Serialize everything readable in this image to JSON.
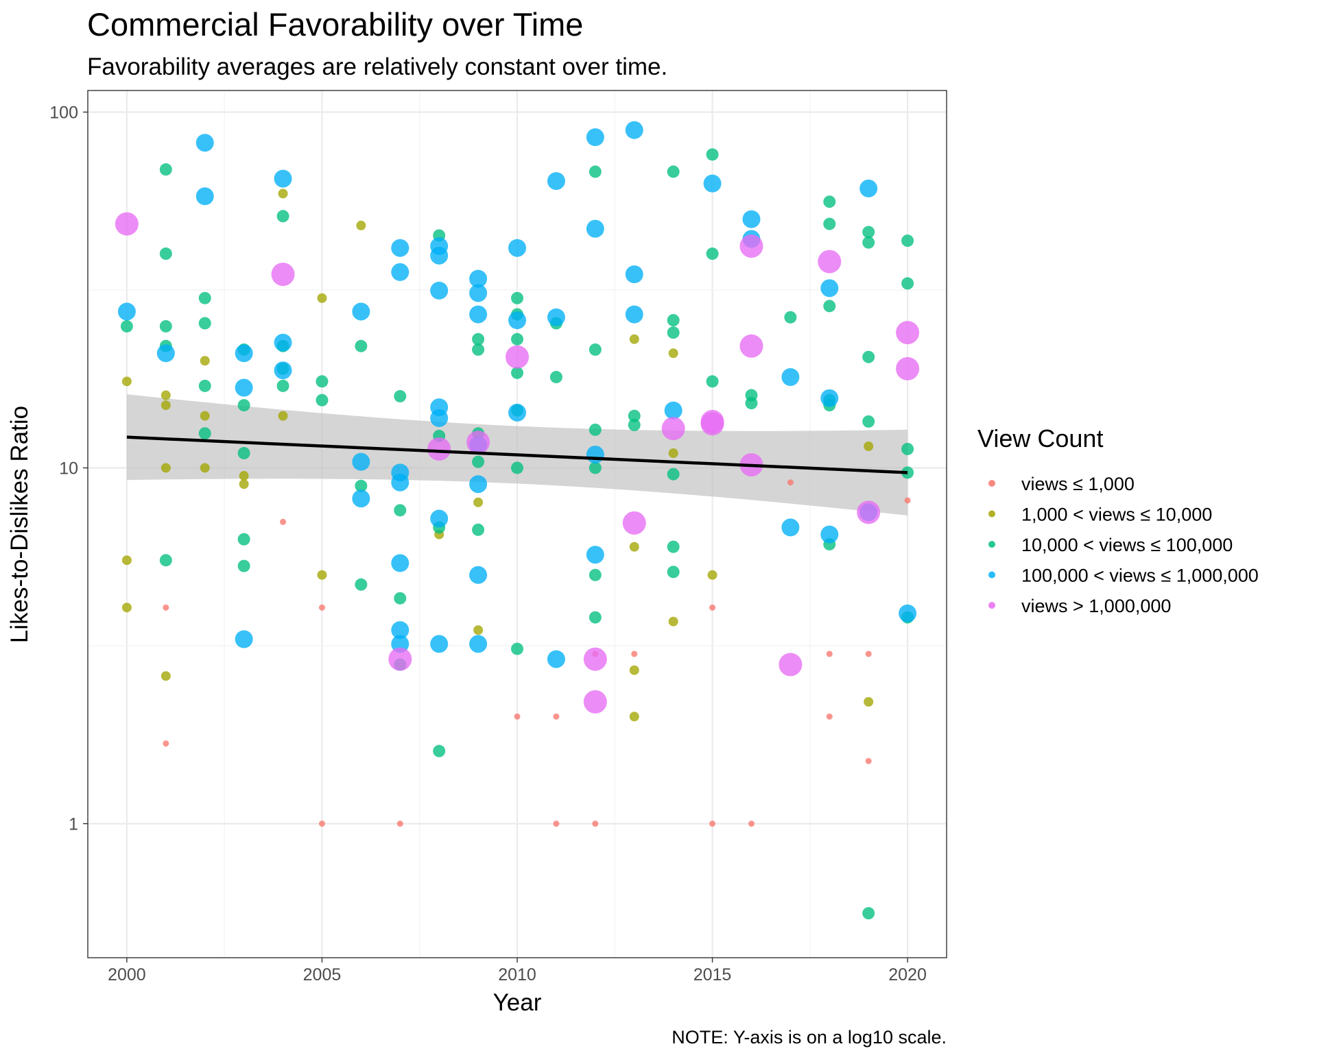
{
  "chart_data": {
    "type": "scatter",
    "title": "Commercial Favorability over Time",
    "subtitle": "Favorability averages are relatively constant over time.",
    "xlabel": "Year",
    "ylabel": "Likes-to-Dislikes Ratio",
    "caption": "NOTE: Y-axis is on a log10 scale.",
    "x_scale": "linear",
    "y_scale": "log10",
    "xlim": [
      1999,
      2021
    ],
    "ylim": [
      0.42,
      115
    ],
    "x_ticks": [
      2000,
      2005,
      2010,
      2015,
      2020
    ],
    "x_tick_labels": [
      "2000",
      "2005",
      "2010",
      "2015",
      "2020"
    ],
    "y_ticks": [
      1,
      10,
      100
    ],
    "y_tick_labels": [
      "1",
      "10",
      "100"
    ],
    "grid": true,
    "legend": {
      "title": "View Count",
      "position": "right",
      "entries": [
        {
          "label": "views ≤ 1,000",
          "color": "#F8766D"
        },
        {
          "label": "1,000 < views ≤ 10,000",
          "color": "#A3A500"
        },
        {
          "label": "10,000 < views ≤ 100,000",
          "color": "#00BF7D"
        },
        {
          "label": "100,000 < views ≤ 1,000,000",
          "color": "#00B0F6"
        },
        {
          "label": "views > 1,000,000",
          "color": "#E76BF3"
        }
      ]
    },
    "trend": {
      "method": "linear fit on log scale",
      "line_color": "#000000",
      "band_color": "#BEBEBE",
      "x": [
        2000,
        2020
      ],
      "y": [
        12.2,
        9.7
      ],
      "ci_lower": [
        9.3,
        7.3
      ],
      "ci_upper": [
        16.1,
        12.8
      ]
    },
    "series": [
      {
        "color": "#F8766D",
        "points": [
          [
            2001,
            4.05
          ],
          [
            2001,
            1.68
          ],
          [
            2004,
            7.05
          ],
          [
            2005,
            4.05
          ],
          [
            2005,
            1.0
          ],
          [
            2007,
            1.0
          ],
          [
            2010,
            2.0
          ],
          [
            2011,
            2.0
          ],
          [
            2011,
            1.0
          ],
          [
            2012,
            1.0
          ],
          [
            2012,
            3.0
          ],
          [
            2013,
            3.0
          ],
          [
            2015,
            4.05
          ],
          [
            2015,
            1.0
          ],
          [
            2016,
            1.0
          ],
          [
            2017,
            9.1
          ],
          [
            2018,
            3.0
          ],
          [
            2018,
            2.0
          ],
          [
            2019,
            3.0
          ],
          [
            2019,
            1.5
          ],
          [
            2020,
            8.1
          ]
        ]
      },
      {
        "color": "#A3A500",
        "points": [
          [
            2000,
            17.5
          ],
          [
            2000,
            5.5
          ],
          [
            2000,
            4.05
          ],
          [
            2001,
            16.0
          ],
          [
            2001,
            15.0
          ],
          [
            2001,
            10.0
          ],
          [
            2001,
            2.6
          ],
          [
            2002,
            20.0
          ],
          [
            2002,
            14.0
          ],
          [
            2002,
            10.0
          ],
          [
            2003,
            9.5
          ],
          [
            2003,
            9.0
          ],
          [
            2004,
            59.0
          ],
          [
            2004,
            14.0
          ],
          [
            2005,
            30.0
          ],
          [
            2005,
            5.0
          ],
          [
            2006,
            48.0
          ],
          [
            2008,
            6.5
          ],
          [
            2009,
            8.0
          ],
          [
            2009,
            3.5
          ],
          [
            2013,
            23.0
          ],
          [
            2013,
            6.0
          ],
          [
            2013,
            2.7
          ],
          [
            2013,
            2.0
          ],
          [
            2014,
            21.0
          ],
          [
            2014,
            11.0
          ],
          [
            2014,
            3.7
          ],
          [
            2015,
            5.0
          ],
          [
            2019,
            11.5
          ],
          [
            2019,
            2.2
          ]
        ]
      },
      {
        "color": "#00BF7D",
        "points": [
          [
            2000,
            25.0
          ],
          [
            2001,
            69.0
          ],
          [
            2001,
            40.0
          ],
          [
            2001,
            25.0
          ],
          [
            2001,
            22.0
          ],
          [
            2001,
            5.5
          ],
          [
            2002,
            30.0
          ],
          [
            2002,
            25.5
          ],
          [
            2002,
            17.0
          ],
          [
            2002,
            12.5
          ],
          [
            2003,
            21.5
          ],
          [
            2003,
            15.0
          ],
          [
            2003,
            11.0
          ],
          [
            2003,
            6.3
          ],
          [
            2003,
            5.3
          ],
          [
            2004,
            51.0
          ],
          [
            2004,
            22.0
          ],
          [
            2004,
            19.0
          ],
          [
            2004,
            17.0
          ],
          [
            2005,
            17.5
          ],
          [
            2005,
            15.5
          ],
          [
            2006,
            22.0
          ],
          [
            2006,
            8.9
          ],
          [
            2006,
            4.7
          ],
          [
            2007,
            15.9
          ],
          [
            2007,
            7.6
          ],
          [
            2007,
            4.3
          ],
          [
            2007,
            2.8
          ],
          [
            2008,
            45.0
          ],
          [
            2008,
            12.3
          ],
          [
            2008,
            6.8
          ],
          [
            2008,
            1.6
          ],
          [
            2009,
            23.0
          ],
          [
            2009,
            21.5
          ],
          [
            2009,
            12.5
          ],
          [
            2009,
            10.4
          ],
          [
            2009,
            6.7
          ],
          [
            2010,
            30.0
          ],
          [
            2010,
            27.0
          ],
          [
            2010,
            23.0
          ],
          [
            2010,
            18.5
          ],
          [
            2010,
            14.5
          ],
          [
            2010,
            10.0
          ],
          [
            2010,
            3.1
          ],
          [
            2011,
            25.5
          ],
          [
            2011,
            18.0
          ],
          [
            2012,
            68.0
          ],
          [
            2012,
            21.5
          ],
          [
            2012,
            12.8
          ],
          [
            2012,
            10.0
          ],
          [
            2012,
            5.0
          ],
          [
            2012,
            3.8
          ],
          [
            2013,
            14.0
          ],
          [
            2013,
            13.2
          ],
          [
            2014,
            68.0
          ],
          [
            2014,
            26.0
          ],
          [
            2014,
            24.0
          ],
          [
            2014,
            9.6
          ],
          [
            2014,
            6.0
          ],
          [
            2014,
            5.1
          ],
          [
            2015,
            76.0
          ],
          [
            2015,
            40.0
          ],
          [
            2015,
            17.5
          ],
          [
            2016,
            16.0
          ],
          [
            2016,
            15.2
          ],
          [
            2017,
            26.5
          ],
          [
            2018,
            56.0
          ],
          [
            2018,
            48.5
          ],
          [
            2018,
            28.5
          ],
          [
            2018,
            15.5
          ],
          [
            2018,
            15.0
          ],
          [
            2018,
            6.1
          ],
          [
            2019,
            46.0
          ],
          [
            2019,
            43.0
          ],
          [
            2019,
            20.5
          ],
          [
            2019,
            13.5
          ],
          [
            2019,
            0.56
          ],
          [
            2020,
            43.5
          ],
          [
            2020,
            33.0
          ],
          [
            2020,
            11.3
          ],
          [
            2020,
            9.7
          ],
          [
            2020,
            3.8
          ]
        ]
      },
      {
        "color": "#00B0F6",
        "points": [
          [
            2000,
            27.5
          ],
          [
            2001,
            21.0
          ],
          [
            2002,
            82.0
          ],
          [
            2002,
            58.0
          ],
          [
            2003,
            21.0
          ],
          [
            2003,
            16.8
          ],
          [
            2003,
            3.3
          ],
          [
            2004,
            65.0
          ],
          [
            2004,
            22.5
          ],
          [
            2004,
            18.8
          ],
          [
            2006,
            27.5
          ],
          [
            2006,
            10.4
          ],
          [
            2006,
            8.2
          ],
          [
            2007,
            41.5
          ],
          [
            2007,
            35.5
          ],
          [
            2007,
            9.7
          ],
          [
            2007,
            9.1
          ],
          [
            2007,
            5.4
          ],
          [
            2007,
            3.5
          ],
          [
            2007,
            3.2
          ],
          [
            2008,
            42.0
          ],
          [
            2008,
            39.5
          ],
          [
            2008,
            31.5
          ],
          [
            2008,
            14.8
          ],
          [
            2008,
            13.8
          ],
          [
            2008,
            7.2
          ],
          [
            2008,
            3.2
          ],
          [
            2009,
            34.0
          ],
          [
            2009,
            31.0
          ],
          [
            2009,
            27.0
          ],
          [
            2009,
            11.6
          ],
          [
            2009,
            9.0
          ],
          [
            2009,
            5.0
          ],
          [
            2009,
            3.2
          ],
          [
            2010,
            41.5
          ],
          [
            2010,
            26.0
          ],
          [
            2010,
            14.3
          ],
          [
            2011,
            64.0
          ],
          [
            2011,
            26.5
          ],
          [
            2011,
            2.9
          ],
          [
            2012,
            85.0
          ],
          [
            2012,
            47.0
          ],
          [
            2012,
            10.9
          ],
          [
            2012,
            5.7
          ],
          [
            2013,
            89.0
          ],
          [
            2013,
            35.0
          ],
          [
            2013,
            27.0
          ],
          [
            2014,
            14.5
          ],
          [
            2015,
            63.0
          ],
          [
            2016,
            50.0
          ],
          [
            2016,
            44.0
          ],
          [
            2017,
            18.0
          ],
          [
            2017,
            6.8
          ],
          [
            2018,
            32.0
          ],
          [
            2018,
            15.7
          ],
          [
            2018,
            6.5
          ],
          [
            2019,
            61.0
          ],
          [
            2019,
            7.5
          ],
          [
            2020,
            3.9
          ]
        ]
      },
      {
        "color": "#E76BF3",
        "points": [
          [
            2000,
            48.5
          ],
          [
            2004,
            35.0
          ],
          [
            2007,
            2.9
          ],
          [
            2008,
            11.3
          ],
          [
            2009,
            11.8
          ],
          [
            2010,
            20.5
          ],
          [
            2012,
            2.9
          ],
          [
            2012,
            2.2
          ],
          [
            2013,
            7.0
          ],
          [
            2014,
            12.9
          ],
          [
            2015,
            13.3
          ],
          [
            2015,
            13.5
          ],
          [
            2016,
            42.0
          ],
          [
            2016,
            22.0
          ],
          [
            2016,
            10.2
          ],
          [
            2017,
            2.8
          ],
          [
            2018,
            38.0
          ],
          [
            2019,
            7.5
          ],
          [
            2020,
            24.0
          ],
          [
            2020,
            19.0
          ]
        ]
      }
    ]
  }
}
